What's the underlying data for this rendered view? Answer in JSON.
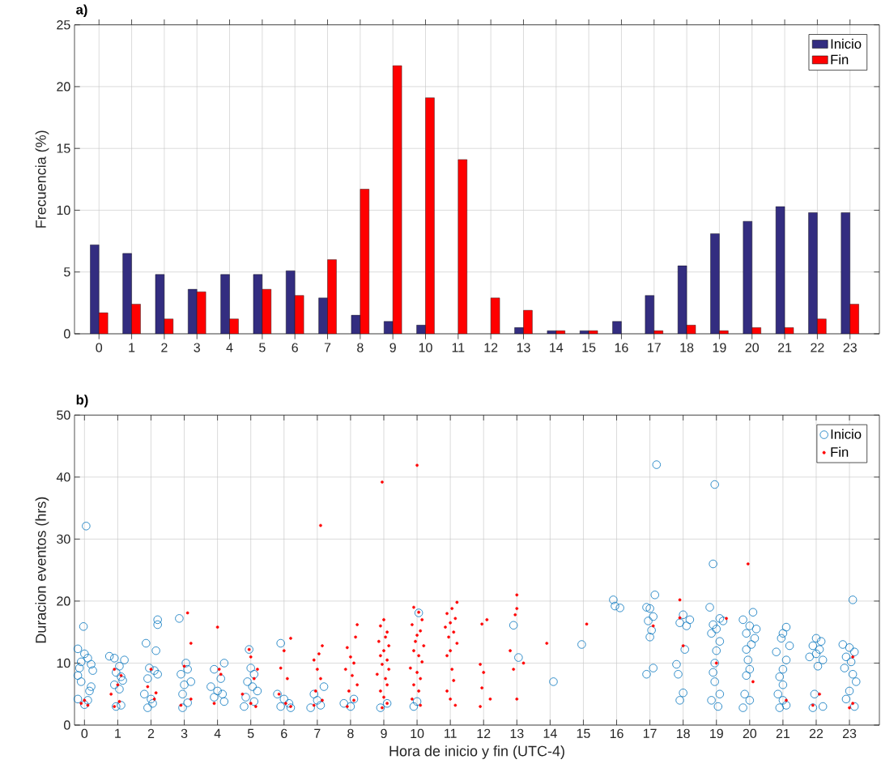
{
  "chart_data": [
    {
      "type": "bar",
      "title": "a)",
      "ylabel": "Frecuencia (%)",
      "categories": [
        "0",
        "1",
        "2",
        "3",
        "4",
        "5",
        "6",
        "7",
        "8",
        "9",
        "10",
        "11",
        "12",
        "13",
        "14",
        "15",
        "16",
        "17",
        "18",
        "19",
        "20",
        "21",
        "22",
        "23"
      ],
      "series": [
        {
          "name": "Inicio",
          "color": "#332d80",
          "values": [
            7.2,
            6.5,
            4.8,
            3.6,
            4.8,
            4.8,
            5.1,
            2.9,
            1.5,
            1.0,
            0.7,
            0,
            0,
            0.5,
            0.25,
            0.25,
            1.0,
            3.1,
            5.5,
            8.1,
            9.1,
            10.3,
            9.8,
            9.8
          ]
        },
        {
          "name": "Fin",
          "color": "#ff0000",
          "values": [
            1.7,
            2.4,
            1.2,
            3.4,
            1.2,
            3.6,
            3.1,
            6.0,
            11.7,
            21.7,
            19.1,
            14.1,
            2.9,
            1.9,
            0.25,
            0.25,
            0,
            0.25,
            0.7,
            0.25,
            0.5,
            0.5,
            1.2,
            2.4
          ]
        }
      ],
      "ylim": [
        0,
        25
      ],
      "yticks": [
        0,
        5,
        10,
        15,
        20,
        25
      ],
      "grid": true,
      "legend": "top right"
    },
    {
      "type": "scatter",
      "title": "b)",
      "xlabel": "Hora de inicio y fin (UTC-4)",
      "ylabel": "Duracion eventos (hrs)",
      "series": [
        {
          "name": "Inicio",
          "color": "#0072bd",
          "marker": "circle",
          "x": [
            0.05,
            -0.03,
            -0.2,
            0.0,
            0.1,
            -0.1,
            0.2,
            -0.15,
            0.25,
            -0.2,
            -0.1,
            0.2,
            0.15,
            -0.2,
            0.1,
            0.0,
            0.75,
            0.9,
            1.2,
            1.05,
            0.95,
            1.1,
            1.15,
            0.9,
            1.05,
            1.1,
            0.95,
            2.2,
            2.2,
            1.85,
            2.15,
            1.95,
            2.1,
            2.2,
            1.9,
            1.8,
            2.0,
            2.05,
            1.9,
            2.85,
            3.05,
            3.1,
            2.9,
            3.2,
            3.0,
            2.95,
            3.1,
            2.95,
            4.2,
            3.9,
            4.1,
            3.8,
            4.0,
            4.15,
            3.9,
            4.2,
            4.95,
            5.0,
            5.1,
            4.9,
            5.05,
            5.2,
            4.85,
            5.1,
            4.8,
            5.9,
            5.8,
            6.0,
            6.15,
            5.9,
            6.2,
            7.2,
            6.9,
            7.0,
            7.1,
            6.8,
            8.1,
            7.8,
            8.0,
            9.1,
            8.9,
            10.05,
            10.0,
            9.9,
            12.9,
            13.05,
            14.1,
            14.95,
            15.9,
            15.95,
            16.1,
            17.2,
            17.15,
            16.9,
            17.0,
            17.1,
            16.95,
            17.05,
            17.0,
            17.1,
            16.9,
            18.0,
            18.2,
            17.9,
            18.1,
            18.05,
            17.8,
            17.85,
            18.0,
            17.9,
            18.95,
            18.9,
            18.8,
            19.1,
            19.2,
            18.9,
            19.0,
            18.85,
            19.1,
            19.0,
            18.95,
            18.9,
            18.95,
            19.1,
            18.85,
            19.05,
            20.1,
            19.8,
            20.0,
            20.2,
            19.9,
            20.15,
            20.05,
            19.9,
            19.95,
            20.0,
            19.9,
            19.85,
            20.0,
            19.8,
            21.1,
            21.0,
            20.95,
            21.2,
            20.8,
            21.1,
            21.0,
            20.9,
            21.0,
            20.85,
            21.0,
            21.1,
            20.9,
            22.0,
            22.15,
            21.9,
            22.1,
            22.0,
            21.8,
            22.2,
            22.05,
            21.95,
            21.9,
            22.2,
            23.1,
            22.8,
            23.0,
            23.15,
            22.9,
            23.05,
            22.85,
            23.1,
            23.2,
            23.0,
            22.9,
            23.15
          ],
          "values": [
            32.1,
            15.9,
            12.3,
            11.5,
            10.8,
            10.2,
            9.8,
            9.2,
            8.8,
            8.0,
            7.0,
            6.2,
            5.5,
            4.2,
            4.0,
            3.3,
            11.1,
            10.8,
            10.5,
            9.5,
            8.5,
            7.8,
            7.2,
            6.5,
            5.8,
            3.2,
            3.0,
            17.0,
            16.2,
            13.2,
            12.0,
            9.2,
            8.8,
            8.2,
            7.5,
            5.0,
            4.2,
            3.5,
            2.8,
            17.2,
            10.0,
            9.0,
            8.2,
            7.0,
            6.5,
            5.0,
            3.6,
            2.8,
            10.0,
            9.0,
            7.5,
            6.2,
            5.5,
            5.0,
            4.5,
            3.8,
            12.2,
            9.2,
            8.2,
            7.0,
            6.2,
            5.5,
            4.5,
            3.8,
            3.0,
            13.2,
            5.0,
            4.2,
            3.5,
            3.0,
            2.8,
            6.2,
            5.0,
            4.0,
            3.2,
            2.8,
            4.2,
            3.5,
            3.0,
            3.5,
            2.8,
            18.1,
            3.8,
            3.0,
            16.1,
            10.9,
            7.0,
            13.0,
            20.2,
            19.2,
            18.9,
            42.0,
            21.0,
            19.0,
            18.8,
            17.5,
            16.8,
            15.3,
            14.2,
            9.2,
            8.2,
            17.8,
            17.0,
            16.5,
            16.0,
            12.2,
            9.8,
            8.2,
            5.2,
            4.0,
            38.8,
            26.0,
            19.0,
            17.2,
            16.8,
            16.2,
            15.5,
            14.8,
            13.5,
            12.0,
            10.0,
            8.5,
            7.0,
            5.0,
            4.0,
            3.0,
            18.2,
            17.0,
            16.0,
            15.5,
            14.8,
            14.0,
            13.0,
            12.2,
            10.5,
            9.0,
            8.0,
            5.0,
            4.0,
            2.8,
            15.8,
            14.8,
            14.0,
            12.8,
            11.8,
            10.5,
            9.0,
            7.8,
            6.5,
            5.0,
            4.0,
            3.2,
            2.8,
            14.0,
            13.5,
            12.8,
            12.2,
            11.5,
            11.0,
            10.5,
            9.5,
            5.0,
            2.8,
            3.0,
            20.2,
            13.0,
            12.5,
            11.8,
            11.0,
            10.2,
            9.2,
            8.2,
            7.0,
            5.5,
            4.2,
            3.0
          ]
        },
        {
          "name": "Fin",
          "color": "#ff0000",
          "marker": "point",
          "x": [
            0.0,
            -0.1,
            0.1,
            0.9,
            1.1,
            1.0,
            0.8,
            1.05,
            0.9,
            2.0,
            1.9,
            2.15,
            2.1,
            3.1,
            3.2,
            3.0,
            3.2,
            2.9,
            4.0,
            4.05,
            4.1,
            3.9,
            4.95,
            5.0,
            5.2,
            5.1,
            4.75,
            5.0,
            5.15,
            6.2,
            6.0,
            5.9,
            6.1,
            5.85,
            6.05,
            6.2,
            7.1,
            7.15,
            7.05,
            6.9,
            7.0,
            7.1,
            6.95,
            7.15,
            6.9,
            8.2,
            8.15,
            7.9,
            8.0,
            8.1,
            7.85,
            8.05,
            8.2,
            7.95,
            8.1,
            7.9,
            8.95,
            9.0,
            8.9,
            9.1,
            9.05,
            8.85,
            9.15,
            9.0,
            8.9,
            9.1,
            8.95,
            9.15,
            8.8,
            9.05,
            9.1,
            8.9,
            9.0,
            9.1,
            8.95,
            10.0,
            9.9,
            10.05,
            10.15,
            9.85,
            10.1,
            10.0,
            9.95,
            10.2,
            9.9,
            10.05,
            10.15,
            9.8,
            10.0,
            10.1,
            9.9,
            10.05,
            9.85,
            10.1,
            11.2,
            11.05,
            10.9,
            11.15,
            11.0,
            10.85,
            11.1,
            10.95,
            11.2,
            11.0,
            10.9,
            11.05,
            11.1,
            10.9,
            11.0,
            11.15,
            12.1,
            11.95,
            11.9,
            12.0,
            11.95,
            12.2,
            11.9,
            13.0,
            13.0,
            12.95,
            12.8,
            13.2,
            12.9,
            13.0,
            13.9,
            15.1,
            17.1,
            17.9,
            17.9,
            18.0,
            19.3,
            19.0,
            19.95,
            20.1,
            21.1,
            22.1,
            21.9,
            23.1,
            23.1,
            23.0
          ],
          "values": [
            4.0,
            3.5,
            3.2,
            9.0,
            8.0,
            6.5,
            5.0,
            3.8,
            3.0,
            9.0,
            6.2,
            5.2,
            4.2,
            18.1,
            13.2,
            9.5,
            4.2,
            3.2,
            15.8,
            9.0,
            8.2,
            3.5,
            12.2,
            11.0,
            9.0,
            7.5,
            5.0,
            3.5,
            3.0,
            14.0,
            12.0,
            9.2,
            7.5,
            5.0,
            3.5,
            3.0,
            32.2,
            12.8,
            11.5,
            10.5,
            9.0,
            7.5,
            5.5,
            4.0,
            3.2,
            16.2,
            14.2,
            12.5,
            11.0,
            10.0,
            9.0,
            8.0,
            6.5,
            5.5,
            4.0,
            3.0,
            39.2,
            17.0,
            16.0,
            15.0,
            14.2,
            13.5,
            12.8,
            12.0,
            11.2,
            10.5,
            9.8,
            9.0,
            8.2,
            7.5,
            6.5,
            5.5,
            4.5,
            3.5,
            2.8,
            41.9,
            19.0,
            18.2,
            17.0,
            16.2,
            15.2,
            14.5,
            13.5,
            12.8,
            12.0,
            11.2,
            10.2,
            9.2,
            8.5,
            7.5,
            6.5,
            5.5,
            4.2,
            3.2,
            19.8,
            18.8,
            18.0,
            17.2,
            16.5,
            15.8,
            15.0,
            14.2,
            13.2,
            12.0,
            11.2,
            9.0,
            7.2,
            5.5,
            4.2,
            3.2,
            17.0,
            16.3,
            9.8,
            8.5,
            6.0,
            4.2,
            3.0,
            21.0,
            18.8,
            17.8,
            12.0,
            10.0,
            9.0,
            4.2,
            13.2,
            16.3,
            16.0,
            20.2,
            17.3,
            12.8,
            17.2,
            10.0,
            26.0,
            7.0,
            4.0,
            5.0,
            3.2,
            11.0,
            3.5,
            2.8
          ]
        }
      ],
      "xlim": [
        -0.3,
        23.9
      ],
      "xticks": [
        0,
        1,
        2,
        3,
        4,
        5,
        6,
        7,
        8,
        9,
        10,
        11,
        12,
        13,
        14,
        15,
        16,
        17,
        18,
        19,
        20,
        21,
        22,
        23
      ],
      "ylim": [
        0,
        50
      ],
      "yticks": [
        0,
        10,
        20,
        30,
        40,
        50
      ],
      "grid": true,
      "legend": "top right"
    }
  ]
}
